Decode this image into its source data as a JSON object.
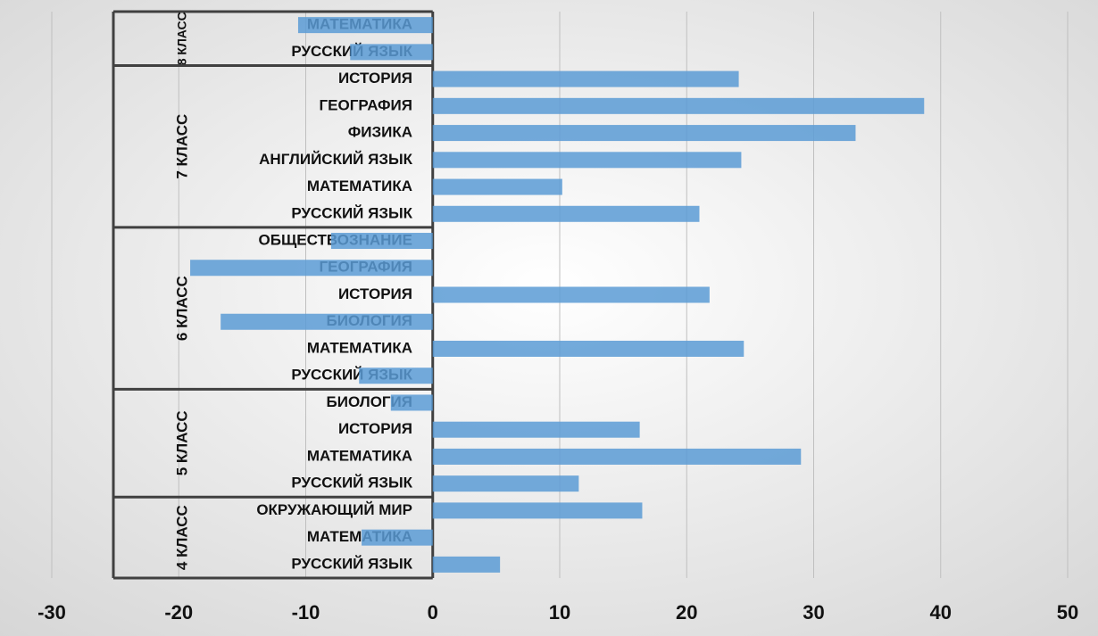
{
  "chart_data": {
    "type": "bar",
    "orientation": "horizontal",
    "color": "#5b9bd5",
    "groups": [
      {
        "name": "8 КЛАСС",
        "categories": [
          "МАТЕМАТИКА",
          "РУССКИЙ ЯЗЫК"
        ],
        "values": [
          -10.6,
          -6.5
        ]
      },
      {
        "name": "7 КЛАСС",
        "categories": [
          "ИСТОРИЯ",
          "ГЕОГРАФИЯ",
          "ФИЗИКА",
          "АНГЛИЙСКИЙ ЯЗЫК",
          "МАТЕМАТИКА",
          "РУССКИЙ ЯЗЫК"
        ],
        "values": [
          24.1,
          38.7,
          33.3,
          24.3,
          10.2,
          21
        ]
      },
      {
        "name": "6 КЛАСС",
        "categories": [
          "ОБЩЕСТВОЗНАНИЕ",
          "ГЕОГРАФИЯ",
          "ИСТОРИЯ",
          "БИОЛОГИЯ",
          "МАТЕМАТИКА",
          "РУССКИЙ ЯЗЫК"
        ],
        "values": [
          -8,
          -19.1,
          21.8,
          -16.7,
          24.5,
          -5.8
        ]
      },
      {
        "name": "5 КЛАСС",
        "categories": [
          "БИОЛОГИЯ",
          "ИСТОРИЯ",
          "МАТЕМАТИКА",
          "РУССКИЙ ЯЗЫК"
        ],
        "values": [
          -3.3,
          16.3,
          29,
          11.5
        ]
      },
      {
        "name": "4 КЛАСС",
        "categories": [
          "ОКРУЖАЮЩИЙ МИР",
          "МАТЕМАТИКА",
          "РУССКИЙ ЯЗЫК"
        ],
        "values": [
          16.5,
          -5.6,
          5.3
        ]
      }
    ],
    "xlim": [
      -30,
      50
    ],
    "xticks": [
      -30,
      -20,
      -10,
      0,
      10,
      20,
      30,
      40,
      50
    ],
    "grid": true
  }
}
